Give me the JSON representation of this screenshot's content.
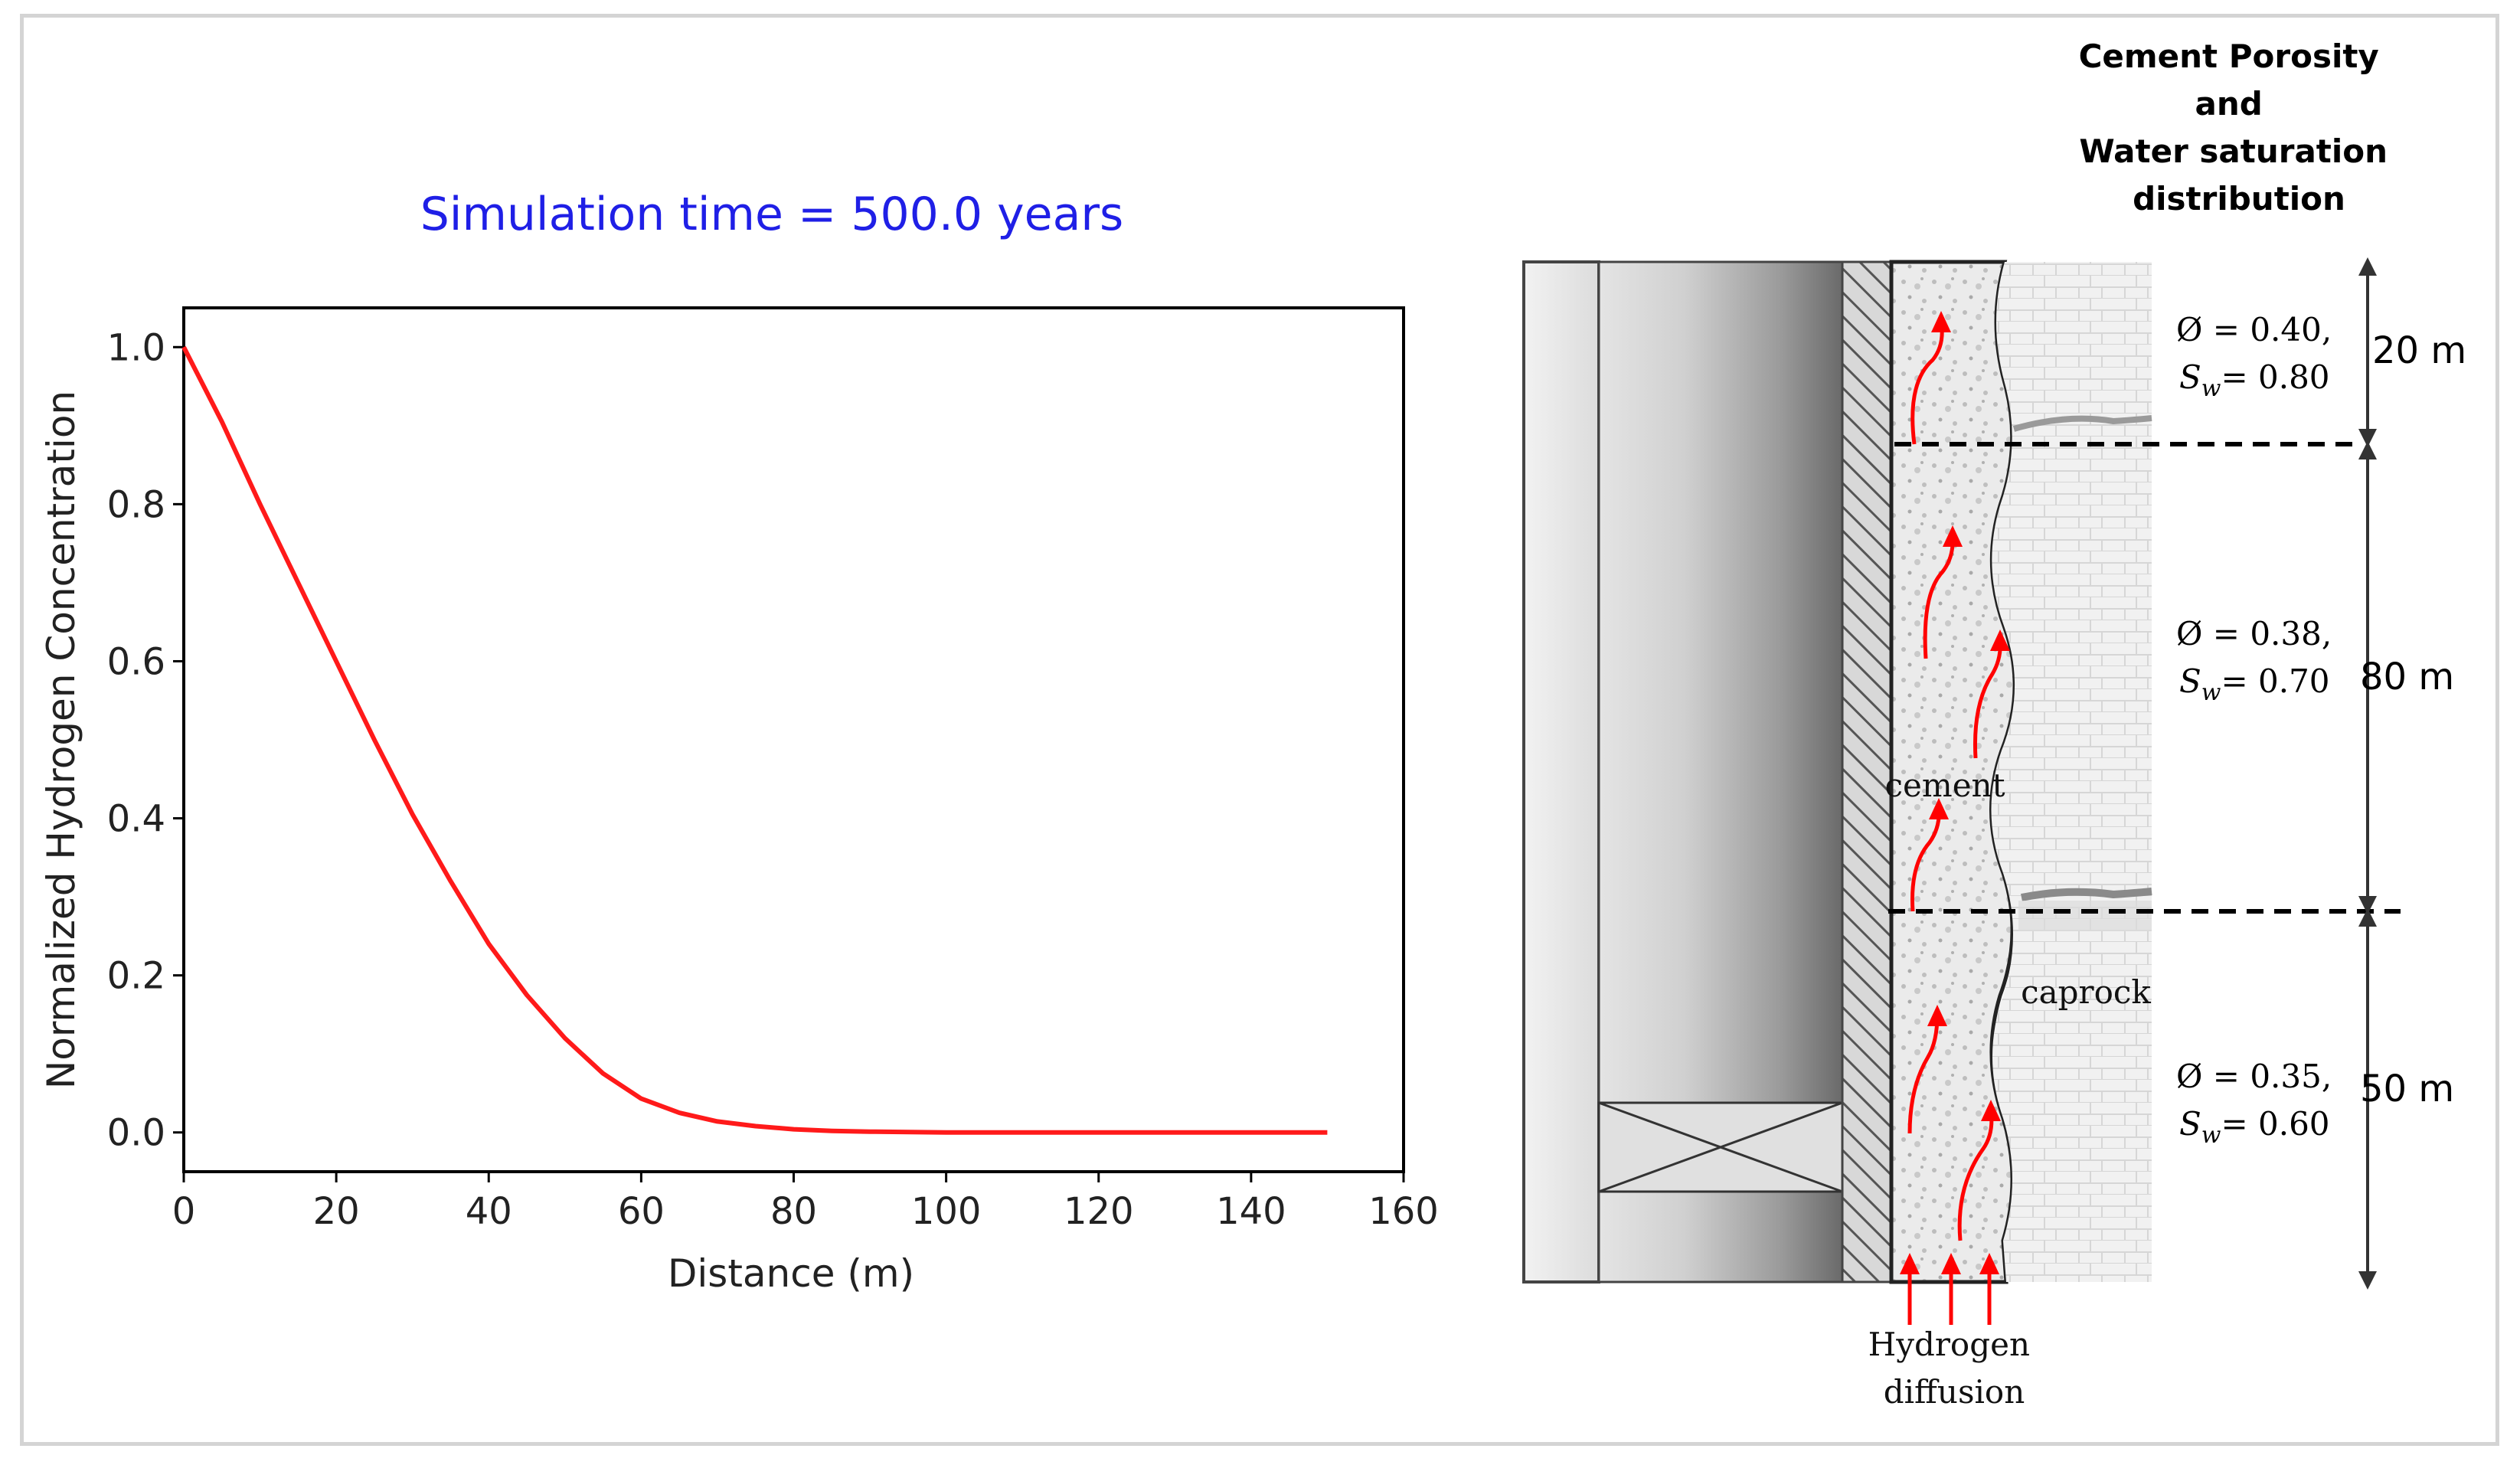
{
  "chart_data": {
    "type": "line",
    "title": "Simulation time = 500.0 years",
    "xlabel": "Distance (m)",
    "ylabel": "Normalized Hydrogen Concentration",
    "xlim": [
      0,
      160
    ],
    "ylim": [
      -0.05,
      1.05
    ],
    "xticks": [
      0,
      20,
      40,
      60,
      80,
      100,
      120,
      140,
      160
    ],
    "yticks": [
      0.0,
      0.2,
      0.4,
      0.6,
      0.8,
      1.0
    ],
    "xtick_labels": [
      "0",
      "20",
      "40",
      "60",
      "80",
      "100",
      "120",
      "140",
      "160"
    ],
    "ytick_labels": [
      "0.0",
      "0.2",
      "0.4",
      "0.6",
      "0.8",
      "1.0"
    ],
    "series": [
      {
        "color": "#ff1a1a",
        "x": [
          0,
          5,
          10,
          15,
          20,
          25,
          30,
          35,
          40,
          45,
          50,
          55,
          60,
          65,
          70,
          75,
          80,
          85,
          90,
          100,
          110,
          120,
          130,
          140,
          150
        ],
        "y": [
          1.0,
          0.905,
          0.8,
          0.7,
          0.6,
          0.5,
          0.405,
          0.32,
          0.24,
          0.175,
          0.12,
          0.075,
          0.043,
          0.025,
          0.014,
          0.008,
          0.004,
          0.002,
          0.001,
          0.0,
          0.0,
          0.0,
          0.0,
          0.0,
          0.0
        ]
      }
    ]
  },
  "diagram": {
    "heading": [
      "Cement Porosity",
      "and",
      "Water saturation",
      "distribution"
    ],
    "zones": [
      {
        "porosity": "Ø = 0.40,",
        "saturation_symbol": "S",
        "saturation_sub": "w",
        "saturation_value": "= 0.80",
        "length": "20 m"
      },
      {
        "porosity": "Ø = 0.38,",
        "saturation_symbol": "S",
        "saturation_sub": "w",
        "saturation_value": "= 0.70",
        "length": "80 m"
      },
      {
        "porosity": "Ø = 0.35,",
        "saturation_symbol": "S",
        "saturation_sub": "w",
        "saturation_value": "= 0.60",
        "length": "50 m"
      }
    ],
    "labels": {
      "cement": "cement",
      "caprock": "caprock",
      "diffusion": [
        "Hydrogen",
        "diffusion"
      ]
    },
    "colors": {
      "arrow": "#ff0000",
      "dashed_line": "#000000"
    }
  }
}
